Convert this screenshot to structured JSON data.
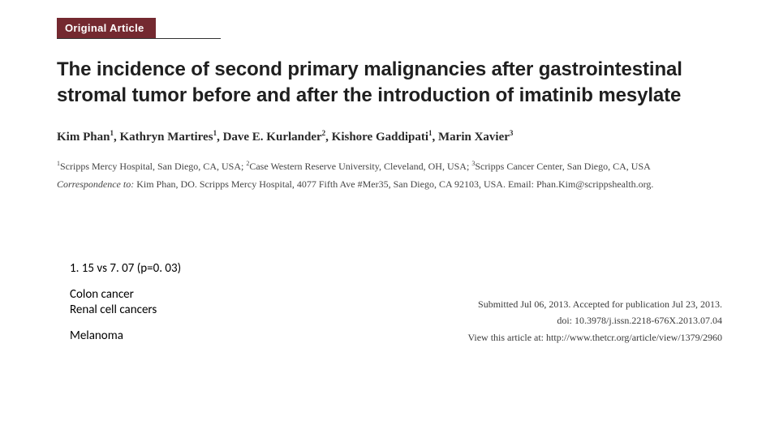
{
  "badge": {
    "label": "Original Article",
    "bg_color": "#742930",
    "text_color": "#ffffff"
  },
  "title": "The incidence of second primary malignancies after gastrointestinal stromal tumor before and after the introduction of imatinib mesylate",
  "authors_html": "Kim Phan<sup>1</sup>, Kathryn Martires<sup>1</sup>, Dave E. Kurlander<sup>2</sup>, Kishore Gaddipati<sup>1</sup>, Marin Xavier<sup>3</sup>",
  "affiliations_html": "<sup>1</sup>Scripps Mercy Hospital, San Diego, CA, USA; <sup>2</sup>Case Western Reserve University, Cleveland, OH, USA; <sup>3</sup>Scripps Cancer Center, San Diego, CA, USA",
  "correspondence": {
    "label": "Correspondence to:",
    "text": " Kim Phan, DO. Scripps Mercy Hospital, 4077 Fifth Ave #Mer35, San Diego, CA 92103, USA. Email: Phan.Kim@scrippshealth.org."
  },
  "notes": {
    "stat_line": "1. 15 vs 7. 07 (p=0. 03)",
    "cancer1": "Colon cancer",
    "cancer2": "Renal cell cancers",
    "cancer3": "Melanoma"
  },
  "meta": {
    "submitted": "Submitted Jul 06, 2013. Accepted for publication Jul 23, 2013.",
    "doi": "doi: 10.3978/j.issn.2218-676X.2013.07.04",
    "view_label": "View this article at: ",
    "view_url": "http://www.thetcr.org/article/view/1379/2960"
  },
  "colors": {
    "badge_bg": "#742930",
    "text_primary": "#1f1f1f",
    "text_body": "#2c2c2c",
    "background": "#ffffff"
  }
}
